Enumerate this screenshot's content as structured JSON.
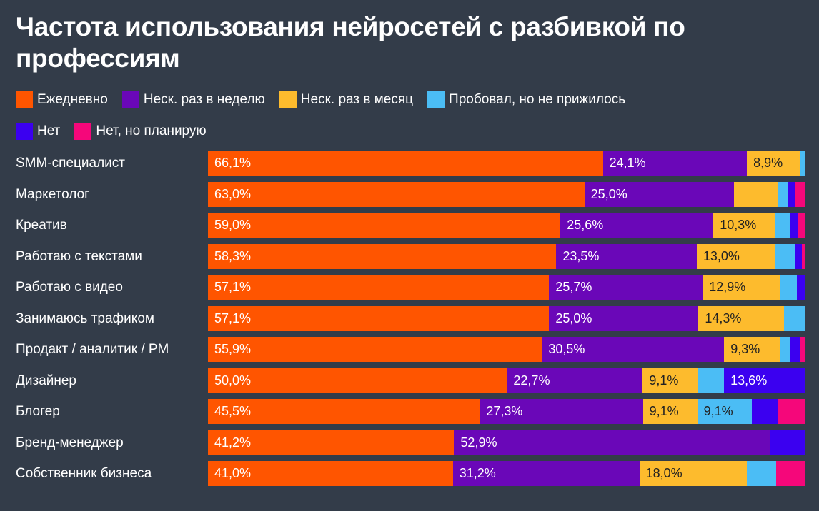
{
  "title": "Частота использования нейросетей с разбивкой по профессиям",
  "colors": {
    "daily": "#ff5500",
    "weekly": "#6a07b8",
    "monthly": "#fdbb2d",
    "tried": "#4bbdf5",
    "no": "#3b00f0",
    "planning": "#f5077a"
  },
  "chart_data": {
    "type": "bar",
    "orientation": "horizontal",
    "stacked": true,
    "title": "Частота использования нейросетей с разбивкой по профессиям",
    "xlim": [
      0,
      100
    ],
    "legend_placement": "top-left",
    "categories": [
      "SMM-специалист",
      "Маркетолог",
      "Креатив",
      "Работаю с текстами",
      "Работаю с видео",
      "Занимаюсь трафиком",
      "Продакт / аналитик / PM",
      "Дизайнер",
      "Блогер",
      "Бренд-менеджер",
      "Собственник бизнеса"
    ],
    "series": [
      {
        "name": "Ежедневно",
        "color": "#ff5500",
        "values": [
          66.1,
          63.0,
          59.0,
          58.3,
          57.1,
          57.1,
          55.9,
          50.0,
          45.5,
          41.2,
          41.0
        ],
        "labels": [
          "66,1%",
          "63,0%",
          "59,0%",
          "58,3%",
          "57,1%",
          "57,1%",
          "55,9%",
          "50,0%",
          "45,5%",
          "41,2%",
          "41,0%"
        ]
      },
      {
        "name": "Неск. раз в неделю",
        "color": "#6a07b8",
        "values": [
          24.1,
          25.0,
          25.6,
          23.5,
          25.7,
          25.0,
          30.5,
          22.7,
          27.3,
          52.9,
          31.2
        ],
        "labels": [
          "24,1%",
          "25,0%",
          "25,6%",
          "23,5%",
          "25,7%",
          "25,0%",
          "30,5%",
          "22,7%",
          "27,3%",
          "52,9%",
          "31,2%"
        ]
      },
      {
        "name": "Неск. раз в месяц",
        "color": "#fdbb2d",
        "values": [
          8.9,
          7.3,
          10.3,
          13.0,
          12.9,
          14.3,
          9.3,
          9.1,
          9.1,
          0,
          18.0
        ],
        "labels": [
          "8,9%",
          "",
          "10,3%",
          "13,0%",
          "12,9%",
          "14,3%",
          "9,3%",
          "9,1%",
          "9,1%",
          "",
          "18,0%"
        ]
      },
      {
        "name": "Пробовал, но не прижилось",
        "color": "#4bbdf5",
        "values": [
          0.9,
          1.8,
          2.6,
          3.5,
          2.9,
          3.6,
          1.7,
          4.5,
          9.1,
          0,
          4.9
        ],
        "labels": [
          "",
          "",
          "",
          "",
          "",
          "",
          "",
          "",
          "9,1%",
          "",
          ""
        ]
      },
      {
        "name": "Нет",
        "color": "#3b00f0",
        "values": [
          0,
          0.9,
          1.3,
          1.0,
          1.4,
          0,
          1.6,
          13.6,
          4.5,
          5.9,
          0
        ],
        "labels": [
          "",
          "",
          "",
          "",
          "",
          "",
          "",
          "13,6%",
          "",
          "",
          ""
        ]
      },
      {
        "name": "Нет, но планирую",
        "color": "#f5077a",
        "values": [
          0,
          2.0,
          1.2,
          0.7,
          0,
          0,
          1.0,
          0,
          4.5,
          0,
          4.9
        ],
        "labels": [
          "",
          "",
          "",
          "",
          "",
          "",
          "",
          "",
          "",
          "",
          ""
        ]
      }
    ]
  }
}
